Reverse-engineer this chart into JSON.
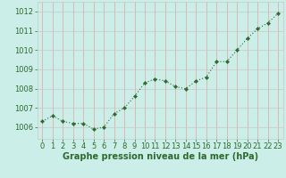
{
  "x": [
    0,
    1,
    2,
    3,
    4,
    5,
    6,
    7,
    8,
    9,
    10,
    11,
    12,
    13,
    14,
    15,
    16,
    17,
    18,
    19,
    20,
    21,
    22,
    23
  ],
  "y": [
    1006.3,
    1006.6,
    1006.3,
    1006.2,
    1006.2,
    1005.9,
    1006.0,
    1006.7,
    1007.0,
    1007.6,
    1008.3,
    1008.5,
    1008.4,
    1008.1,
    1008.0,
    1008.4,
    1008.6,
    1009.4,
    1009.4,
    1010.0,
    1010.6,
    1011.1,
    1011.4,
    1011.9
  ],
  "line_color": "#2d6a2d",
  "marker_color": "#2d6a2d",
  "bg_color": "#cceee8",
  "grid_color_major_h": "#c8c8c8",
  "grid_color_minor_v": "#e8a0a0",
  "xlabel": "Graphe pression niveau de la mer (hPa)",
  "xlabel_color": "#2d6a2d",
  "ylim_min": 1005.4,
  "ylim_max": 1012.5,
  "yticks": [
    1006,
    1007,
    1008,
    1009,
    1010,
    1011,
    1012
  ],
  "xticks": [
    0,
    1,
    2,
    3,
    4,
    5,
    6,
    7,
    8,
    9,
    10,
    11,
    12,
    13,
    14,
    15,
    16,
    17,
    18,
    19,
    20,
    21,
    22,
    23
  ],
  "tick_label_color": "#2d6a2d",
  "tick_label_size": 6.0,
  "xlabel_size": 7.0
}
